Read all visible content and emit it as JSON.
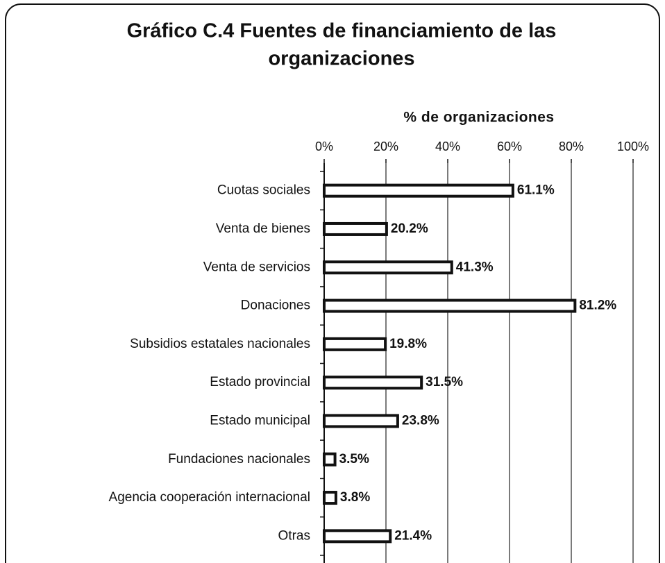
{
  "chart_data": {
    "type": "bar",
    "orientation": "horizontal",
    "title": [
      "Gráfico C.4 Fuentes de financiamiento de las",
      "organizaciones"
    ],
    "x_label": "% de organizaciones",
    "categories": [
      "Cuotas sociales",
      "Venta de bienes",
      "Venta de servicios",
      "Donaciones",
      "Subsidios estatales nacionales",
      "Estado provincial",
      "Estado municipal",
      "Fundaciones nacionales",
      "Agencia cooperación internacional",
      "Otras"
    ],
    "values": [
      61.1,
      20.2,
      41.3,
      81.2,
      19.8,
      31.5,
      23.8,
      3.5,
      3.8,
      21.4
    ],
    "value_labels": [
      "61.1%",
      "20.2%",
      "41.3%",
      "81.2%",
      "19.8%",
      "31.5%",
      "23.8%",
      "3.5%",
      "3.8%",
      "21.4%"
    ],
    "color": "#ffffff",
    "xlim": [
      0,
      100
    ],
    "xticks": [
      {
        "value": 0,
        "label": "0%"
      },
      {
        "value": 20,
        "label": "20%"
      },
      {
        "value": 40,
        "label": "40%"
      },
      {
        "value": 60,
        "label": "60%"
      },
      {
        "value": 80,
        "label": "80%"
      },
      {
        "value": 100,
        "label": "100%"
      }
    ],
    "grid": true
  }
}
